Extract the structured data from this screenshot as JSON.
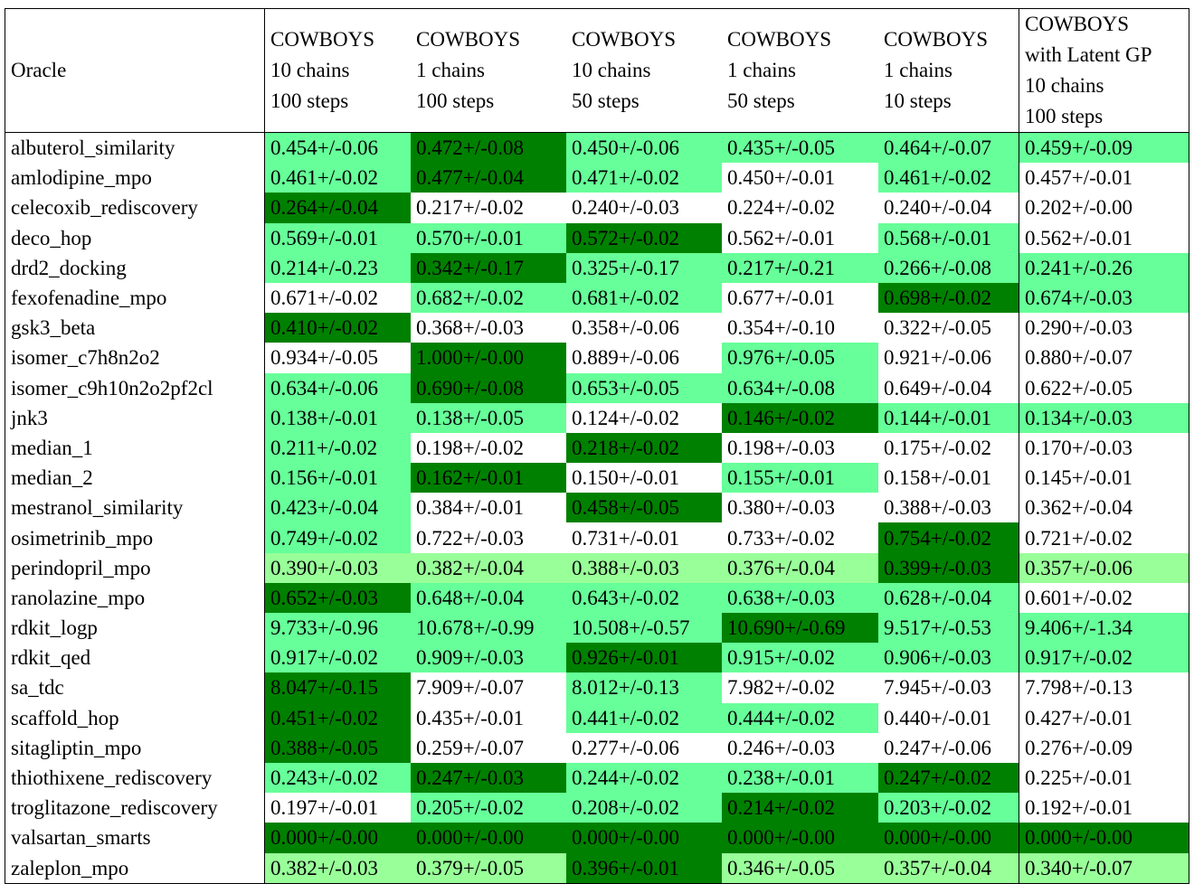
{
  "table": {
    "header": [
      [
        "Oracle"
      ],
      [
        "COWBOYS",
        "10 chains",
        "100 steps"
      ],
      [
        "COWBOYS",
        "1 chains",
        "100 steps"
      ],
      [
        "COWBOYS",
        "10 chains",
        "50 steps"
      ],
      [
        "COWBOYS",
        "1 chains",
        "50 steps"
      ],
      [
        "COWBOYS",
        "1 chains",
        "10 steps"
      ],
      [
        "COWBOYS",
        "with Latent GP",
        "10 chains",
        "100 steps"
      ]
    ],
    "colors": {
      "D": "#008000",
      "L": "#66ff99",
      "P": "#99ff99",
      "W": "#ffffff"
    },
    "rows": [
      [
        "albuterol_similarity",
        "0.454+/-0.06",
        "0.472+/-0.08",
        "0.450+/-0.06",
        "0.435+/-0.05",
        "0.464+/-0.07",
        "0.459+/-0.09"
      ],
      [
        "amlodipine_mpo",
        "0.461+/-0.02",
        "0.477+/-0.04",
        "0.471+/-0.02",
        "0.450+/-0.01",
        "0.461+/-0.02",
        "0.457+/-0.01"
      ],
      [
        "celecoxib_rediscovery",
        "0.264+/-0.04",
        "0.217+/-0.02",
        "0.240+/-0.03",
        "0.224+/-0.02",
        "0.240+/-0.04",
        "0.202+/-0.00"
      ],
      [
        "deco_hop",
        "0.569+/-0.01",
        "0.570+/-0.01",
        "0.572+/-0.02",
        "0.562+/-0.01",
        "0.568+/-0.01",
        "0.562+/-0.01"
      ],
      [
        "drd2_docking",
        "0.214+/-0.23",
        "0.342+/-0.17",
        "0.325+/-0.17",
        "0.217+/-0.21",
        "0.266+/-0.08",
        "0.241+/-0.26"
      ],
      [
        "fexofenadine_mpo",
        "0.671+/-0.02",
        "0.682+/-0.02",
        "0.681+/-0.02",
        "0.677+/-0.01",
        "0.698+/-0.02",
        "0.674+/-0.03"
      ],
      [
        "gsk3_beta",
        "0.410+/-0.02",
        "0.368+/-0.03",
        "0.358+/-0.06",
        "0.354+/-0.10",
        "0.322+/-0.05",
        "0.290+/-0.03"
      ],
      [
        "isomer_c7h8n2o2",
        "0.934+/-0.05",
        "1.000+/-0.00",
        "0.889+/-0.06",
        "0.976+/-0.05",
        "0.921+/-0.06",
        "0.880+/-0.07"
      ],
      [
        "isomer_c9h10n2o2pf2cl",
        "0.634+/-0.06",
        "0.690+/-0.08",
        "0.653+/-0.05",
        "0.634+/-0.08",
        "0.649+/-0.04",
        "0.622+/-0.05"
      ],
      [
        "jnk3",
        "0.138+/-0.01",
        "0.138+/-0.05",
        "0.124+/-0.02",
        "0.146+/-0.02",
        "0.144+/-0.01",
        "0.134+/-0.03"
      ],
      [
        "median_1",
        "0.211+/-0.02",
        "0.198+/-0.02",
        "0.218+/-0.02",
        "0.198+/-0.03",
        "0.175+/-0.02",
        "0.170+/-0.03"
      ],
      [
        "median_2",
        "0.156+/-0.01",
        "0.162+/-0.01",
        "0.150+/-0.01",
        "0.155+/-0.01",
        "0.158+/-0.01",
        "0.145+/-0.01"
      ],
      [
        "mestranol_similarity",
        "0.423+/-0.04",
        "0.384+/-0.01",
        "0.458+/-0.05",
        "0.380+/-0.03",
        "0.388+/-0.03",
        "0.362+/-0.04"
      ],
      [
        "osimetrinib_mpo",
        "0.749+/-0.02",
        "0.722+/-0.03",
        "0.731+/-0.01",
        "0.733+/-0.02",
        "0.754+/-0.02",
        "0.721+/-0.02"
      ],
      [
        "perindopril_mpo",
        "0.390+/-0.03",
        "0.382+/-0.04",
        "0.388+/-0.03",
        "0.376+/-0.04",
        "0.399+/-0.03",
        "0.357+/-0.06"
      ],
      [
        "ranolazine_mpo",
        "0.652+/-0.03",
        "0.648+/-0.04",
        "0.643+/-0.02",
        "0.638+/-0.03",
        "0.628+/-0.04",
        "0.601+/-0.02"
      ],
      [
        "rdkit_logp",
        "9.733+/-0.96",
        "10.678+/-0.99",
        "10.508+/-0.57",
        "10.690+/-0.69",
        "9.517+/-0.53",
        "9.406+/-1.34"
      ],
      [
        "rdkit_qed",
        "0.917+/-0.02",
        "0.909+/-0.03",
        "0.926+/-0.01",
        "0.915+/-0.02",
        "0.906+/-0.03",
        "0.917+/-0.02"
      ],
      [
        "sa_tdc",
        "8.047+/-0.15",
        "7.909+/-0.07",
        "8.012+/-0.13",
        "7.982+/-0.02",
        "7.945+/-0.03",
        "7.798+/-0.13"
      ],
      [
        "scaffold_hop",
        "0.451+/-0.02",
        "0.435+/-0.01",
        "0.441+/-0.02",
        "0.444+/-0.02",
        "0.440+/-0.01",
        "0.427+/-0.01"
      ],
      [
        "sitagliptin_mpo",
        "0.388+/-0.05",
        "0.259+/-0.07",
        "0.277+/-0.06",
        "0.246+/-0.03",
        "0.247+/-0.06",
        "0.276+/-0.09"
      ],
      [
        "thiothixene_rediscovery",
        "0.243+/-0.02",
        "0.247+/-0.03",
        "0.244+/-0.02",
        "0.238+/-0.01",
        "0.247+/-0.02",
        "0.225+/-0.01"
      ],
      [
        "troglitazone_rediscovery",
        "0.197+/-0.01",
        "0.205+/-0.02",
        "0.208+/-0.02",
        "0.214+/-0.02",
        "0.203+/-0.02",
        "0.192+/-0.01"
      ],
      [
        "valsartan_smarts",
        "0.000+/-0.00",
        "0.000+/-0.00",
        "0.000+/-0.00",
        "0.000+/-0.00",
        "0.000+/-0.00",
        "0.000+/-0.00"
      ],
      [
        "zaleplon_mpo",
        "0.382+/-0.03",
        "0.379+/-0.05",
        "0.396+/-0.01",
        "0.346+/-0.05",
        "0.357+/-0.04",
        "0.340+/-0.07"
      ]
    ],
    "shading": [
      "LDLLLL",
      "LDLWLW",
      "DWWWWW",
      "LLDWLW",
      "LDLLLL",
      "WLLWDL",
      "DWWWWW",
      "WDWLWW",
      "LDLLWW",
      "LLWDLL",
      "LWDWWW",
      "LDWLWW",
      "LWDWWW",
      "LWWWDW",
      "PPPPDP",
      "DLLLLW",
      "LLLDLL",
      "LLDLLL",
      "DWLWWW",
      "DWLLWW",
      "DWWWWW",
      "LDLLDW",
      "WLLDLW",
      "DDDDDD",
      "PPDPPP"
    ]
  }
}
